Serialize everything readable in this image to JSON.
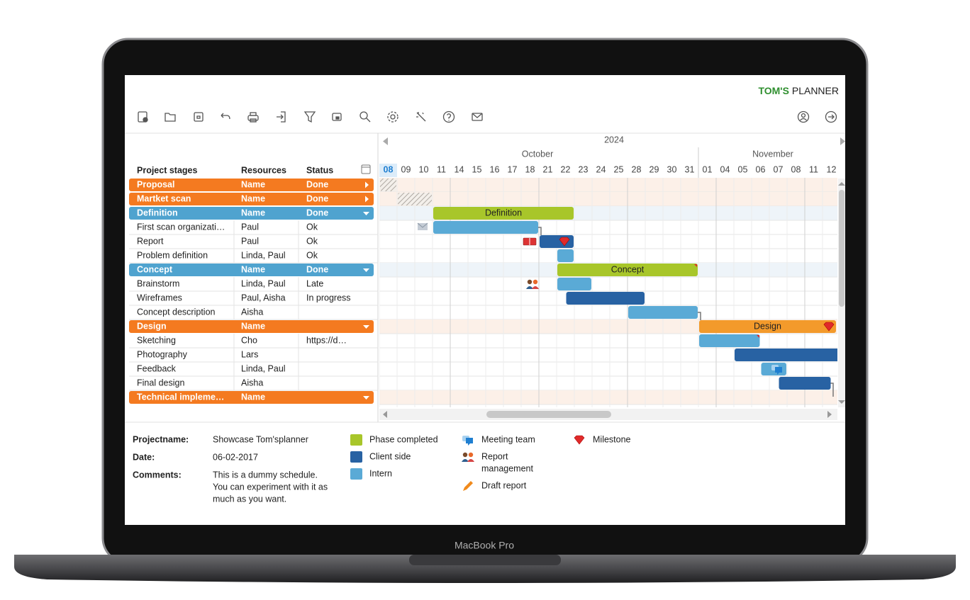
{
  "brand": {
    "strong": "TOM'S",
    "light": "PLANNER"
  },
  "table": {
    "headers": [
      "Project stages",
      "Resources",
      "Status"
    ],
    "rows": [
      {
        "name": "Proposal",
        "resources": "Name",
        "status": "Done",
        "color": "#f47a20",
        "expanded": false
      },
      {
        "name": "Martket scan",
        "resources": "Name",
        "status": "Done",
        "color": "#f47a20",
        "expanded": false
      },
      {
        "name": "Definition",
        "resources": "Name",
        "status": "Done",
        "color": "#4fa3cf",
        "expanded": true
      },
      {
        "name": "First scan organizati…",
        "resources": "Paul",
        "status": "Ok"
      },
      {
        "name": "Report",
        "resources": "Paul",
        "status": "Ok"
      },
      {
        "name": "Problem definition",
        "resources": "Linda, Paul",
        "status": "Ok"
      },
      {
        "name": "Concept",
        "resources": "Name",
        "status": "Done",
        "color": "#4fa3cf",
        "expanded": true
      },
      {
        "name": "Brainstorm",
        "resources": "Linda, Paul",
        "status": "Late"
      },
      {
        "name": "Wireframes",
        "resources": "Paul, Aisha",
        "status": "In progress"
      },
      {
        "name": "Concept description",
        "resources": "Aisha"
      },
      {
        "name": "Design",
        "resources": "Name",
        "color": "#f47a20",
        "expanded": true
      },
      {
        "name": "Sketching",
        "resources": "Cho",
        "status": "https://d…"
      },
      {
        "name": "Photography",
        "resources": "Lars"
      },
      {
        "name": "Feedback",
        "resources": "Linda, Paul"
      },
      {
        "name": "Final design",
        "resources": "Aisha"
      },
      {
        "name": "Technical impleme…",
        "resources": "Name",
        "color": "#f47a20",
        "expanded": true
      }
    ]
  },
  "timeline": {
    "year": "2024",
    "months": [
      "October",
      "November"
    ],
    "days": [
      "08",
      "09",
      "10",
      "11",
      "14",
      "15",
      "16",
      "17",
      "18",
      "21",
      "22",
      "23",
      "24",
      "25",
      "28",
      "29",
      "30",
      "31",
      "01",
      "04",
      "05",
      "06",
      "07",
      "08",
      "11",
      "12"
    ]
  },
  "footer": {
    "fields": [
      {
        "label": "Projectname:",
        "lines": [
          "Showcase Tom'splanner"
        ]
      },
      {
        "label": "Date:",
        "lines": [
          "06-02-2017"
        ]
      },
      {
        "label": "Comments:",
        "lines": [
          "This is a dummy schedule.",
          "You can experiment with it as",
          "much as you want."
        ]
      }
    ],
    "colors": [
      {
        "name": "Phase completed",
        "color": "#a8c62a"
      },
      {
        "name": "Client side",
        "color": "#2862a3"
      },
      {
        "name": "Intern",
        "color": "#5aaad6"
      }
    ],
    "icons": [
      {
        "lines": [
          "Meeting team"
        ]
      },
      {
        "lines": [
          "Report",
          "management"
        ]
      },
      {
        "lines": [
          "Draft report"
        ]
      },
      {
        "lines": [
          "Milestone"
        ]
      }
    ]
  },
  "device": "MacBook Pro"
}
